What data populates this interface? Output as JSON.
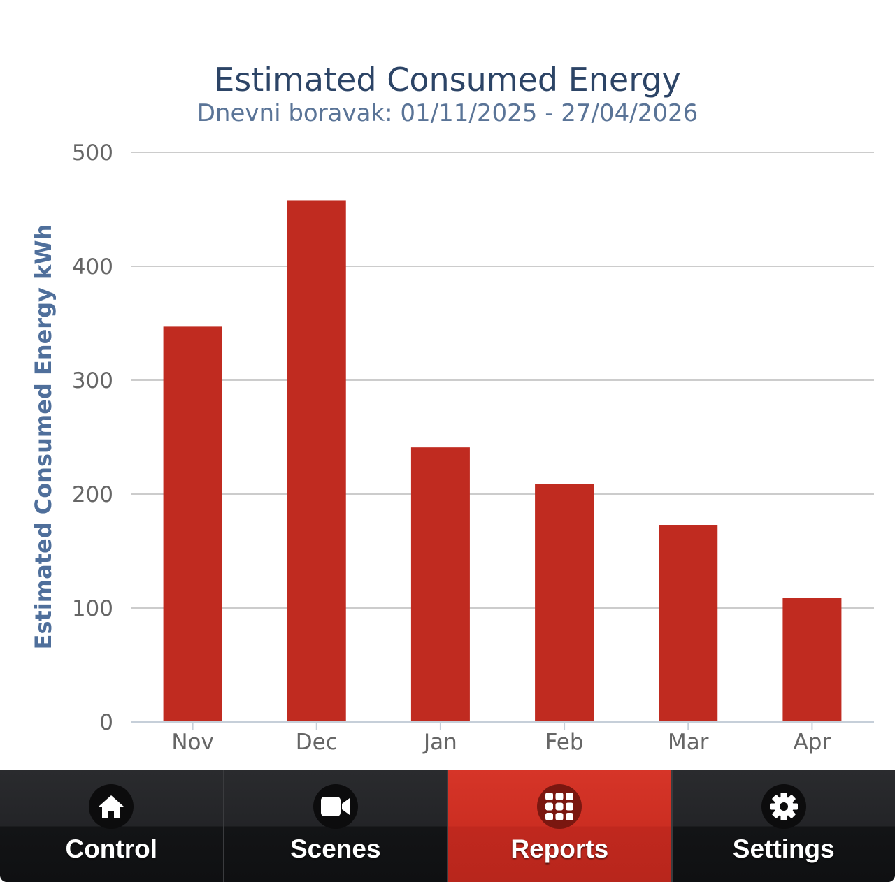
{
  "chart_data": {
    "type": "bar",
    "title": "Estimated Consumed Energy",
    "subtitle": "Dnevni boravak: 01/11/2025 - 27/04/2026",
    "xlabel": "",
    "ylabel": "Estimated Consumed Energy kWh",
    "categories": [
      "Nov",
      "Dec",
      "Jan",
      "Feb",
      "Mar",
      "Apr"
    ],
    "values": [
      347,
      458,
      241,
      209,
      173,
      109
    ],
    "ylim": [
      0,
      500
    ],
    "yticks": [
      "0",
      "100",
      "200",
      "300",
      "400",
      "500"
    ],
    "grid": true,
    "legend": "none",
    "bar_color": "#c02b20"
  },
  "tabs": [
    {
      "label": "Control",
      "icon": "home-icon",
      "active": false
    },
    {
      "label": "Scenes",
      "icon": "video-camera-icon",
      "active": false
    },
    {
      "label": "Reports",
      "icon": "grid-icon",
      "active": true
    },
    {
      "label": "Settings",
      "icon": "gear-icon",
      "active": false
    }
  ],
  "colors": {
    "active_tab": "#cc2e22",
    "tab_bar": "#1a1b1e",
    "title": "#2c4466",
    "subtitle": "#5a7497",
    "axis_label": "#4f6f9b"
  }
}
